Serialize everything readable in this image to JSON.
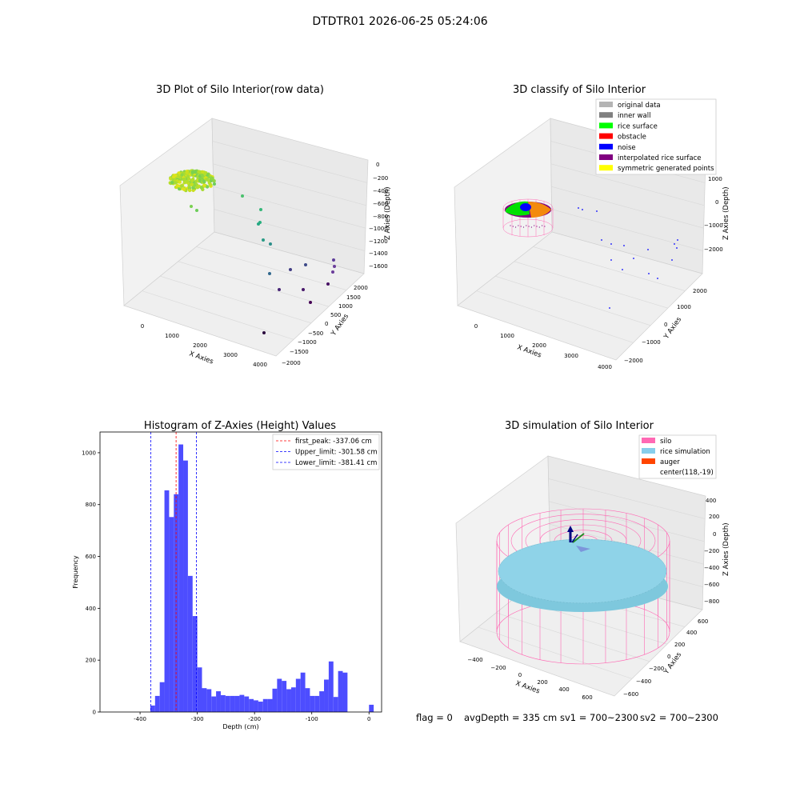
{
  "page": {
    "suptitle": "DTDTR01 2026-06-25 05:24:06",
    "footer": {
      "flag": "flag = 0",
      "avg_depth": "avgDepth = 335 cm",
      "sv1": "sv1 = 700~2300",
      "sv2": "sv2 = 700~2300"
    }
  },
  "chart_data": [
    {
      "type": "scatter",
      "title": "3D Plot of Silo Interior(row data)",
      "xlabel": "X Axies",
      "ylabel": "Y Axies",
      "zlabel": "Z Axies (Depth)",
      "x_ticks": [
        "0",
        "1000",
        "2000",
        "3000",
        "4000"
      ],
      "y_ticks": [
        "2000",
        "1500",
        "1000",
        "500",
        "0",
        "−500",
        "−1000",
        "−1500",
        "−2000"
      ],
      "z_ticks": [
        "0",
        "−200",
        "−400",
        "−600",
        "−800",
        "−1000",
        "−1200",
        "−1400",
        "−1600"
      ],
      "colormap": "viridis (color by depth)"
    },
    {
      "type": "scatter",
      "title": "3D classify of Silo Interior",
      "xlabel": "X Axies",
      "ylabel": "Y Axies",
      "zlabel": "Z Axies (Depth)",
      "x_ticks": [
        "0",
        "1000",
        "2000",
        "3000",
        "4000"
      ],
      "y_ticks": [
        "2000",
        "1000",
        "0",
        "−1000",
        "−2000"
      ],
      "z_ticks": [
        "1000",
        "0",
        "−1000",
        "−2000"
      ],
      "legend": [
        {
          "label": "original data",
          "color": "#b4b4b4"
        },
        {
          "label": "inner wall",
          "color": "#808080"
        },
        {
          "label": "rice surface",
          "color": "#00ff00"
        },
        {
          "label": "obstacle",
          "color": "#ff0000"
        },
        {
          "label": "noise",
          "color": "#0000ff"
        },
        {
          "label": "interpolated rice surface",
          "color": "#800080"
        },
        {
          "label": "symmetric generated points",
          "color": "#ffff00"
        }
      ]
    },
    {
      "type": "bar",
      "title": "Histogram of Z-Axies (Height) Values",
      "xlabel": "Depth (cm)",
      "ylabel": "Frequency",
      "xlim": [
        -470,
        22
      ],
      "ylim": [
        0,
        1080
      ],
      "x_ticks": [
        -400,
        -300,
        -200,
        -100,
        0
      ],
      "y_ticks": [
        0,
        200,
        400,
        600,
        800,
        1000
      ],
      "bar_color": "#4d4dff",
      "bin_width": 8.2,
      "bins": [
        {
          "x": -382,
          "y": 25
        },
        {
          "x": -373.8,
          "y": 62
        },
        {
          "x": -365.6,
          "y": 115
        },
        {
          "x": -357.4,
          "y": 855
        },
        {
          "x": -349.2,
          "y": 752
        },
        {
          "x": -341,
          "y": 840
        },
        {
          "x": -332.8,
          "y": 1032
        },
        {
          "x": -324.6,
          "y": 970
        },
        {
          "x": -316.4,
          "y": 525
        },
        {
          "x": -308.2,
          "y": 370
        },
        {
          "x": -300,
          "y": 172
        },
        {
          "x": -291.8,
          "y": 92
        },
        {
          "x": -283.6,
          "y": 88
        },
        {
          "x": -275.4,
          "y": 60
        },
        {
          "x": -267.2,
          "y": 80
        },
        {
          "x": -259,
          "y": 65
        },
        {
          "x": -250.8,
          "y": 62
        },
        {
          "x": -242.6,
          "y": 62
        },
        {
          "x": -234.4,
          "y": 62
        },
        {
          "x": -226.2,
          "y": 66
        },
        {
          "x": -218,
          "y": 60
        },
        {
          "x": -209.8,
          "y": 50
        },
        {
          "x": -201.6,
          "y": 45
        },
        {
          "x": -193.4,
          "y": 40
        },
        {
          "x": -185.2,
          "y": 50
        },
        {
          "x": -177,
          "y": 50
        },
        {
          "x": -168.8,
          "y": 90
        },
        {
          "x": -160.6,
          "y": 128
        },
        {
          "x": -152.4,
          "y": 120
        },
        {
          "x": -144.2,
          "y": 88
        },
        {
          "x": -136,
          "y": 95
        },
        {
          "x": -127.8,
          "y": 128
        },
        {
          "x": -119.6,
          "y": 152
        },
        {
          "x": -111.4,
          "y": 92
        },
        {
          "x": -103.2,
          "y": 62
        },
        {
          "x": -95,
          "y": 62
        },
        {
          "x": -86.8,
          "y": 80
        },
        {
          "x": -78.6,
          "y": 125
        },
        {
          "x": -70.4,
          "y": 195
        },
        {
          "x": -62.2,
          "y": 58
        },
        {
          "x": -54,
          "y": 158
        },
        {
          "x": -45.8,
          "y": 152
        },
        {
          "x": 0,
          "y": 28
        }
      ],
      "vlines": [
        {
          "x": -337.06,
          "color": "#ff0000"
        },
        {
          "x": -301.58,
          "color": "#0000ff"
        },
        {
          "x": -381.41,
          "color": "#0000ff"
        }
      ],
      "legend": [
        {
          "label": "first_peak: -337.06 cm",
          "color": "#ff0000"
        },
        {
          "label": "Upper_limit: -301.58 cm",
          "color": "#0000ff"
        },
        {
          "label": "Lower_limit: -381.41 cm",
          "color": "#0000ff"
        }
      ]
    },
    {
      "type": "scatter",
      "title": "3D simulation of Silo Interior",
      "xlabel": "X Axies",
      "ylabel": "Y Axies",
      "zlabel": "Z Axies (Depth)",
      "x_ticks": [
        "−400",
        "−200",
        "0",
        "200",
        "400",
        "600"
      ],
      "y_ticks": [
        "600",
        "400",
        "200",
        "0",
        "−200",
        "−400",
        "−600"
      ],
      "z_ticks": [
        "400",
        "200",
        "0",
        "−200",
        "−400",
        "−600",
        "−800"
      ],
      "legend": [
        {
          "label": "silo",
          "color": "#ff69b4"
        },
        {
          "label": "rice simulation",
          "color": "#87ceeb"
        },
        {
          "label": "auger",
          "color": "#ff4500"
        },
        {
          "label": "center(118,-19)",
          "color": ""
        }
      ]
    }
  ]
}
